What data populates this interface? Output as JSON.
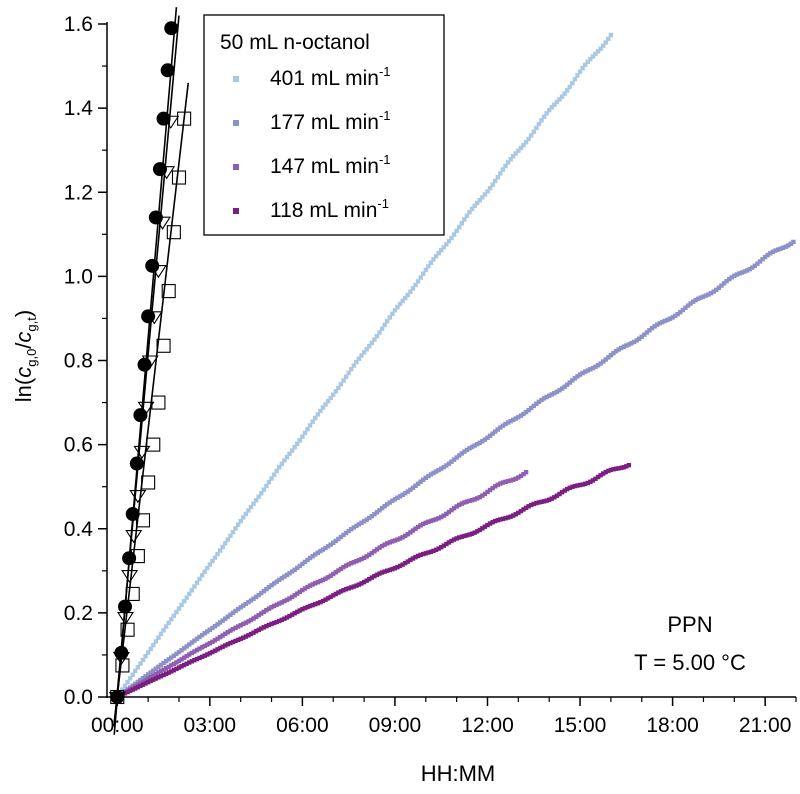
{
  "chart_data": {
    "type": "scatter",
    "xlabel": "HH:MM",
    "ylabel_parts": {
      "prefix": "ln(",
      "num_sym": "c",
      "num_sub": "g,0",
      "slash": "/",
      "den_sym": "c",
      "den_sub": "g,t",
      "suffix": ")"
    },
    "x_unit": "minutes",
    "xlim": [
      -20,
      1320
    ],
    "ylim": [
      0,
      1.6
    ],
    "x_ticks": [
      0,
      180,
      360,
      540,
      720,
      900,
      1080,
      1260
    ],
    "x_tick_labels": [
      "00:00",
      "03:00",
      "06:00",
      "09:00",
      "12:00",
      "15:00",
      "18:00",
      "21:00"
    ],
    "y_ticks": [
      0,
      0.2,
      0.4,
      0.6,
      0.8,
      1.0,
      1.2,
      1.4,
      1.6
    ],
    "y_tick_labels": [
      "0.0",
      "0.2",
      "0.4",
      "0.6",
      "0.8",
      "1.0",
      "1.2",
      "1.4",
      "1.6"
    ],
    "grid": false,
    "legend": {
      "position": "top-left",
      "title": "50 mL n-octanol",
      "unit_sup": "-1"
    },
    "series": [
      {
        "name": "401 mL min",
        "color": "#a9c8e3",
        "x_end": 960,
        "y_end": 1.575,
        "curv": 0.08,
        "dense": true,
        "marker": "square-filled"
      },
      {
        "name": "177 mL min",
        "color": "#8c91c8",
        "x_end": 1315,
        "y_end": 1.085,
        "curv": 0.09,
        "dense": true,
        "marker": "square-filled"
      },
      {
        "name": "147 mL min",
        "color": "#8e5fb0",
        "x_end": 795,
        "y_end": 0.535,
        "curv": 0.08,
        "dense": true,
        "marker": "square-filled"
      },
      {
        "name": "118 mL min",
        "color": "#7a1f80",
        "x_end": 995,
        "y_end": 0.555,
        "curv": 0.05,
        "dense": true,
        "marker": "square-filled"
      },
      {
        "name": "",
        "color": "#000000",
        "marker": "circle-filled",
        "x": [
          0,
          8,
          15,
          23,
          30,
          38,
          45,
          53,
          60,
          68,
          75,
          83,
          90,
          98,
          105
        ],
        "y": [
          0.0,
          0.105,
          0.215,
          0.33,
          0.435,
          0.555,
          0.67,
          0.79,
          0.905,
          1.025,
          1.14,
          1.255,
          1.375,
          1.49,
          1.59
        ],
        "fit": {
          "x": [
            -6,
            115
          ],
          "y": [
            -0.09,
            1.64
          ]
        }
      },
      {
        "name": "",
        "color": "#000000",
        "marker": "triangle-open",
        "x": [
          0,
          8,
          16,
          24,
          32,
          40,
          48,
          56,
          64,
          72,
          80,
          88,
          96,
          104
        ],
        "y": [
          0.0,
          0.095,
          0.19,
          0.29,
          0.385,
          0.48,
          0.585,
          0.69,
          0.8,
          0.905,
          1.015,
          1.13,
          1.25,
          1.37
        ],
        "fit": {
          "x": [
            -6,
            120
          ],
          "y": [
            -0.07,
            1.62
          ]
        }
      },
      {
        "name": "",
        "color": "#000000",
        "marker": "square-open",
        "x": [
          0,
          10,
          20,
          30,
          40,
          50,
          60,
          70,
          80,
          90,
          100,
          110,
          120,
          130
        ],
        "y": [
          0.0,
          0.075,
          0.16,
          0.245,
          0.335,
          0.42,
          0.51,
          0.6,
          0.7,
          0.835,
          0.965,
          1.105,
          1.235,
          1.375
        ],
        "fit": {
          "x": [
            -6,
            138
          ],
          "y": [
            -0.06,
            1.46
          ]
        }
      }
    ],
    "annotations": [
      "PPN",
      "T = 5.00 °C"
    ]
  }
}
